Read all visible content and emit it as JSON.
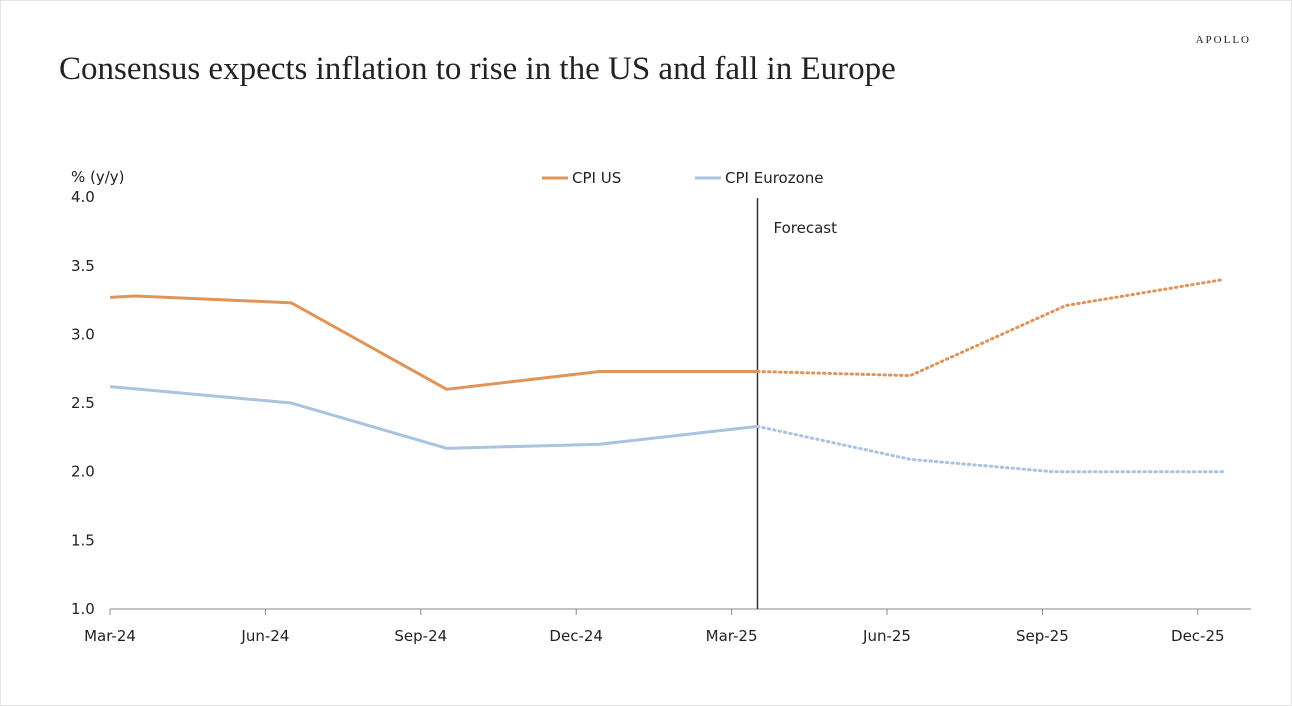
{
  "header": {
    "title": "Consensus expects inflation to rise in the US and fall in Europe",
    "brand": "APOLLO"
  },
  "chart_data": {
    "type": "line",
    "title": "Consensus expects inflation to rise in the US and fall in Europe",
    "ylabel": "% (y/y)",
    "xlabel": "",
    "ylim": [
      1.0,
      4.0
    ],
    "yticks": [
      "1.0",
      "1.5",
      "2.0",
      "2.5",
      "3.0",
      "3.5",
      "4.0"
    ],
    "xtick_labels": [
      "Mar-24",
      "Jun-24",
      "Sep-24",
      "Dec-24",
      "Mar-25",
      "Jun-25",
      "Sep-25",
      "Dec-25"
    ],
    "x_unit": "months since Mar-24",
    "legend": {
      "position": "top-center",
      "entries": [
        "CPI US",
        "CPI Eurozone"
      ]
    },
    "annotation": {
      "label": "Forecast",
      "x": 12.5
    },
    "grid": false,
    "series": [
      {
        "name": "CPI US",
        "color": "#e0945a",
        "actual": {
          "x": [
            0,
            0.5,
            3.5,
            6.5,
            9.45,
            12.5
          ],
          "y": [
            3.27,
            3.28,
            3.23,
            2.6,
            2.73,
            2.73
          ]
        },
        "forecast": {
          "x": [
            12.5,
            15.45,
            18.45,
            21.5
          ],
          "y": [
            2.73,
            2.7,
            3.21,
            3.4
          ]
        }
      },
      {
        "name": "CPI Eurozone",
        "color": "#a9c3e0",
        "actual": {
          "x": [
            0,
            3.5,
            6.5,
            9.45,
            12.5
          ],
          "y": [
            2.62,
            2.5,
            2.17,
            2.2,
            2.33
          ]
        },
        "forecast": {
          "x": [
            12.5,
            15.45,
            18.2,
            21.5
          ],
          "y": [
            2.33,
            2.09,
            2.0,
            2.0
          ]
        }
      }
    ]
  }
}
